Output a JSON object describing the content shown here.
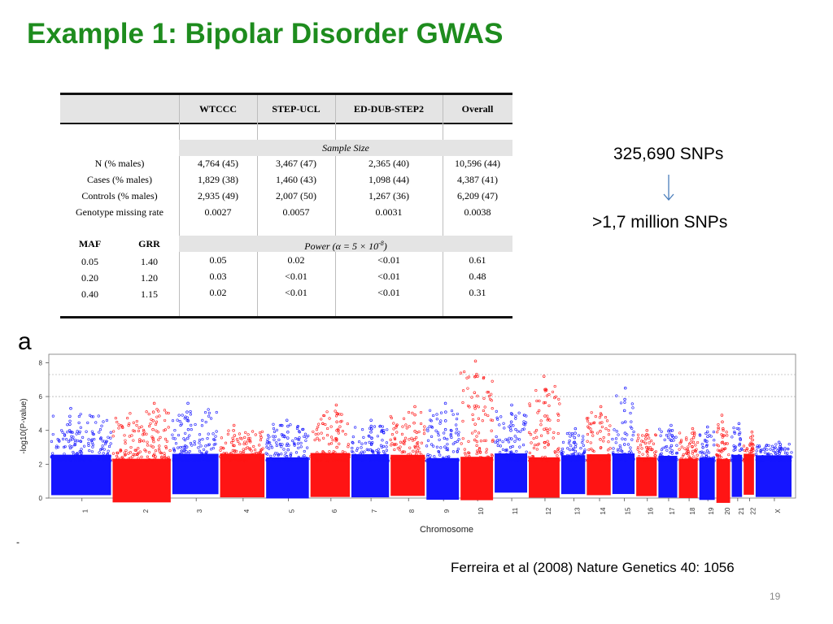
{
  "slide": {
    "title": "Example 1: Bipolar Disorder GWAS",
    "snp_before": "325,690 SNPs",
    "snp_after": ">1,7 million SNPs",
    "citation": "Ferreira et al (2008) Nature Genetics 40: 1056",
    "page_number": "19",
    "panel_label": "a",
    "stray_mark": "-",
    "arrow_color": "#4a7ebb",
    "title_color": "#1e8c1e"
  },
  "table": {
    "columns": [
      "WTCCC",
      "STEP-UCL",
      "ED-DUB-STEP2",
      "Overall"
    ],
    "sample_size_header": "Sample Size",
    "sample_rows": [
      {
        "label": "N (% males)",
        "values": [
          "4,764 (45)",
          "3,467 (47)",
          "2,365 (40)",
          "10,596 (44)"
        ]
      },
      {
        "label": "Cases (% males)",
        "values": [
          "1,829 (38)",
          "1,460 (43)",
          "1,098 (44)",
          "4,387 (41)"
        ]
      },
      {
        "label": "Controls (% males)",
        "values": [
          "2,935 (49)",
          "2,007 (50)",
          "1,267 (36)",
          "6,209 (47)"
        ]
      },
      {
        "label": "Genotype missing rate",
        "values": [
          "0.0027",
          "0.0057",
          "0.0031",
          "0.0038"
        ]
      }
    ],
    "power_sub_headers": [
      "MAF",
      "GRR"
    ],
    "power_header_prefix": "Power (α = 5 × 10",
    "power_header_exp": "-8",
    "power_header_suffix": ")",
    "power_rows": [
      {
        "maf": "0.05",
        "grr": "1.40",
        "values": [
          "0.05",
          "0.02",
          "<0.01",
          "0.61"
        ]
      },
      {
        "maf": "0.20",
        "grr": "1.20",
        "values": [
          "0.03",
          "<0.01",
          "<0.01",
          "0.48"
        ]
      },
      {
        "maf": "0.40",
        "grr": "1.15",
        "values": [
          "0.02",
          "<0.01",
          "<0.01",
          "0.31"
        ]
      }
    ]
  },
  "chart_data": {
    "type": "scatter",
    "subtype": "manhattan",
    "xlabel": "Chromosome",
    "ylabel": "-log10(P-value)",
    "ylim": [
      0,
      8.5
    ],
    "yticks": [
      0,
      2,
      4,
      6,
      8
    ],
    "threshold_lines": [
      7.3,
      6
    ],
    "colors": {
      "odd": "#1515ff",
      "even": "#ff1414"
    },
    "chromosomes": [
      {
        "label": "1",
        "peak": 5.3
      },
      {
        "label": "2",
        "peak": 5.6
      },
      {
        "label": "3",
        "peak": 5.6
      },
      {
        "label": "4",
        "peak": 4.3
      },
      {
        "label": "5",
        "peak": 4.6
      },
      {
        "label": "6",
        "peak": 5.5
      },
      {
        "label": "7",
        "peak": 4.6
      },
      {
        "label": "8",
        "peak": 5.4
      },
      {
        "label": "9",
        "peak": 5.6
      },
      {
        "label": "10",
        "peak": 8.1
      },
      {
        "label": "11",
        "peak": 5.5
      },
      {
        "label": "12",
        "peak": 7.2
      },
      {
        "label": "13",
        "peak": 4.1
      },
      {
        "label": "14",
        "peak": 5.4
      },
      {
        "label": "15",
        "peak": 6.5
      },
      {
        "label": "16",
        "peak": 4.0
      },
      {
        "label": "17",
        "peak": 4.3
      },
      {
        "label": "18",
        "peak": 4.1
      },
      {
        "label": "19",
        "peak": 4.2
      },
      {
        "label": "20",
        "peak": 4.9
      },
      {
        "label": "21",
        "peak": 4.4
      },
      {
        "label": "22",
        "peak": 3.9
      },
      {
        "label": "X",
        "peak": 3.3
      }
    ]
  }
}
